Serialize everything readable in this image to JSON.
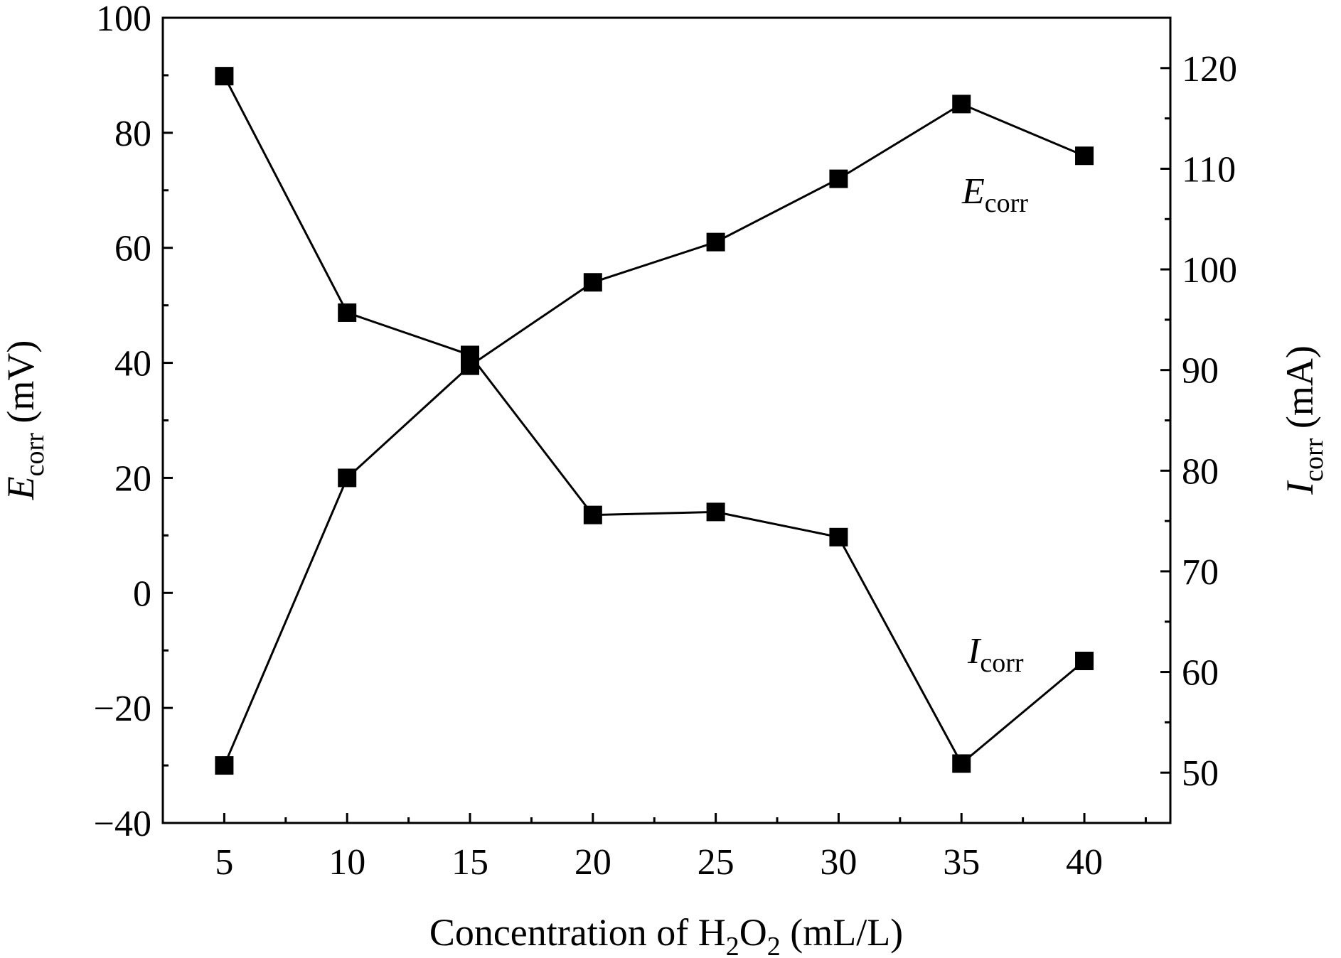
{
  "chart_data": {
    "type": "line",
    "x": [
      5,
      10,
      15,
      20,
      25,
      30,
      35,
      40
    ],
    "xlim": [
      2.5,
      43.5
    ],
    "x_ticks": [
      "5",
      "10",
      "15",
      "20",
      "25",
      "30",
      "35",
      "40"
    ],
    "xlabel": {
      "main": "Concentration of H",
      "sub1": "2",
      "mid": "O",
      "sub2": "2",
      "end": " (mL/L)"
    },
    "left_axis": {
      "ylim": [
        -40,
        100
      ],
      "ticks": [
        "−40",
        "−20",
        "0",
        "20",
        "40",
        "60",
        "80",
        "100"
      ],
      "label": {
        "italic": "E",
        "sub": "corr",
        "unit": " (mV)"
      }
    },
    "right_axis": {
      "ylim": [
        45,
        125
      ],
      "ticks": [
        "50",
        "60",
        "70",
        "80",
        "90",
        "100",
        "110",
        "120"
      ],
      "label": {
        "italic": "I",
        "sub": "corr",
        "unit": " (mA)"
      }
    },
    "series": [
      {
        "axis": "left",
        "label": {
          "italic": "E",
          "sub": "corr"
        },
        "values": [
          -30,
          20,
          39.5,
          54,
          61,
          72,
          85,
          76
        ]
      },
      {
        "axis": "right",
        "label": {
          "italic": "I",
          "sub": "corr"
        },
        "values": [
          119.2,
          95.7,
          91.5,
          75.6,
          75.9,
          73.4,
          50.9,
          61.1
        ]
      }
    ],
    "marker": "square",
    "grid": false,
    "legend": "none",
    "color": "#000000"
  }
}
